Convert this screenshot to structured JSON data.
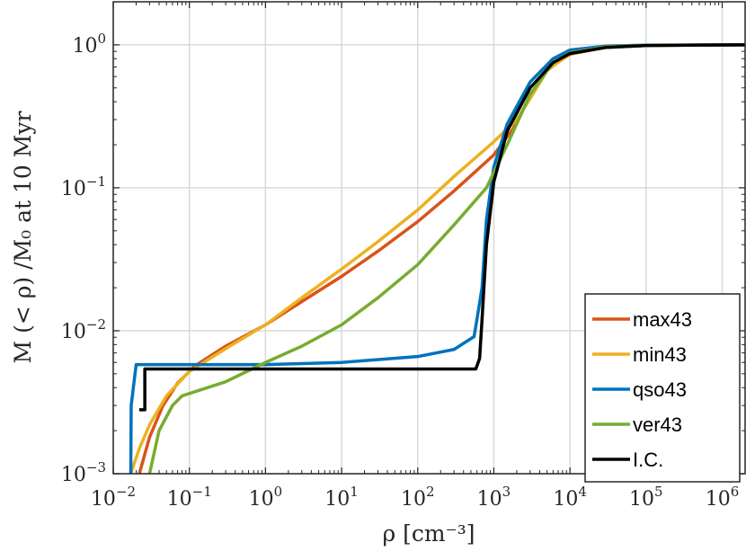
{
  "chart_data": {
    "type": "line",
    "xlabel": "ρ [cm⁻³]",
    "ylabel": "M (< ρ) /M₀ at 10 Myr",
    "xscale": "log",
    "yscale": "log",
    "xlim": [
      0.01,
      2000000
    ],
    "ylim": [
      0.001,
      2
    ],
    "grid": true,
    "legend_position": "bottom-right",
    "x_ticks": [
      {
        "base": "10",
        "exp": "−2",
        "value": 0.01
      },
      {
        "base": "10",
        "exp": "−1",
        "value": 0.1
      },
      {
        "base": "10",
        "exp": "0",
        "value": 1
      },
      {
        "base": "10",
        "exp": "1",
        "value": 10
      },
      {
        "base": "10",
        "exp": "2",
        "value": 100
      },
      {
        "base": "10",
        "exp": "3",
        "value": 1000
      },
      {
        "base": "10",
        "exp": "4",
        "value": 10000
      },
      {
        "base": "10",
        "exp": "5",
        "value": 100000
      },
      {
        "base": "10",
        "exp": "6",
        "value": 1000000
      }
    ],
    "y_ticks": [
      {
        "base": "10",
        "exp": "−3",
        "value": 0.001
      },
      {
        "base": "10",
        "exp": "−2",
        "value": 0.01
      },
      {
        "base": "10",
        "exp": "−1",
        "value": 0.1
      },
      {
        "base": "10",
        "exp": "0",
        "value": 1
      }
    ],
    "series": [
      {
        "name": "max43",
        "color": "#D95319",
        "points": [
          [
            0.022,
            0.001
          ],
          [
            0.03,
            0.0018
          ],
          [
            0.045,
            0.003
          ],
          [
            0.07,
            0.0043
          ],
          [
            0.12,
            0.0057
          ],
          [
            0.3,
            0.0078
          ],
          [
            1,
            0.011
          ],
          [
            3,
            0.016
          ],
          [
            10,
            0.024
          ],
          [
            30,
            0.036
          ],
          [
            100,
            0.058
          ],
          [
            300,
            0.095
          ],
          [
            1000,
            0.17
          ],
          [
            1800,
            0.26
          ],
          [
            3000,
            0.44
          ],
          [
            5000,
            0.67
          ],
          [
            10000,
            0.86
          ],
          [
            30000,
            0.96
          ],
          [
            100000,
            0.99
          ],
          [
            2000000,
            1.0
          ]
        ]
      },
      {
        "name": "min43",
        "color": "#EDB120",
        "points": [
          [
            0.017,
            0.001
          ],
          [
            0.022,
            0.0015
          ],
          [
            0.03,
            0.0022
          ],
          [
            0.05,
            0.0035
          ],
          [
            0.1,
            0.0052
          ],
          [
            0.3,
            0.0075
          ],
          [
            1,
            0.011
          ],
          [
            3,
            0.017
          ],
          [
            10,
            0.027
          ],
          [
            30,
            0.042
          ],
          [
            100,
            0.07
          ],
          [
            300,
            0.12
          ],
          [
            1000,
            0.21
          ],
          [
            2000,
            0.3
          ],
          [
            3000,
            0.42
          ],
          [
            5000,
            0.66
          ],
          [
            10000,
            0.87
          ],
          [
            30000,
            0.96
          ],
          [
            100000,
            0.99
          ],
          [
            2000000,
            1.0
          ]
        ]
      },
      {
        "name": "qso43",
        "color": "#0072BD",
        "points": [
          [
            0.017,
            0.001
          ],
          [
            0.0172,
            0.003
          ],
          [
            0.02,
            0.0058
          ],
          [
            0.04,
            0.0058
          ],
          [
            0.1,
            0.0058
          ],
          [
            1,
            0.0058
          ],
          [
            10,
            0.006
          ],
          [
            100,
            0.0066
          ],
          [
            300,
            0.0074
          ],
          [
            550,
            0.0091
          ],
          [
            600,
            0.012
          ],
          [
            700,
            0.02
          ],
          [
            800,
            0.06
          ],
          [
            1000,
            0.14
          ],
          [
            1500,
            0.28
          ],
          [
            3000,
            0.55
          ],
          [
            6000,
            0.8
          ],
          [
            10000,
            0.92
          ],
          [
            30000,
            0.98
          ],
          [
            100000,
            0.995
          ],
          [
            2000000,
            1.0
          ]
        ]
      },
      {
        "name": "ver43",
        "color": "#77AC30",
        "points": [
          [
            0.03,
            0.001
          ],
          [
            0.04,
            0.002
          ],
          [
            0.06,
            0.003
          ],
          [
            0.08,
            0.0035
          ],
          [
            0.3,
            0.0044
          ],
          [
            1,
            0.006
          ],
          [
            3,
            0.0078
          ],
          [
            10,
            0.011
          ],
          [
            30,
            0.017
          ],
          [
            100,
            0.029
          ],
          [
            300,
            0.055
          ],
          [
            800,
            0.1
          ],
          [
            1500,
            0.2
          ],
          [
            3000,
            0.45
          ],
          [
            6000,
            0.75
          ],
          [
            10000,
            0.88
          ],
          [
            30000,
            0.97
          ],
          [
            100000,
            0.99
          ],
          [
            2000000,
            1.0
          ]
        ]
      },
      {
        "name": "I.C.",
        "color": "#000000",
        "points": [
          [
            0.022,
            0.0028
          ],
          [
            0.026,
            0.0028
          ],
          [
            0.026,
            0.0054
          ],
          [
            0.1,
            0.0054
          ],
          [
            1,
            0.0054
          ],
          [
            10,
            0.0054
          ],
          [
            100,
            0.0054
          ],
          [
            580,
            0.0054
          ],
          [
            650,
            0.0064
          ],
          [
            700,
            0.012
          ],
          [
            800,
            0.04
          ],
          [
            1000,
            0.11
          ],
          [
            1500,
            0.25
          ],
          [
            3000,
            0.5
          ],
          [
            6000,
            0.75
          ],
          [
            10000,
            0.87
          ],
          [
            30000,
            0.96
          ],
          [
            100000,
            0.99
          ],
          [
            2000000,
            1.0
          ]
        ]
      }
    ]
  }
}
